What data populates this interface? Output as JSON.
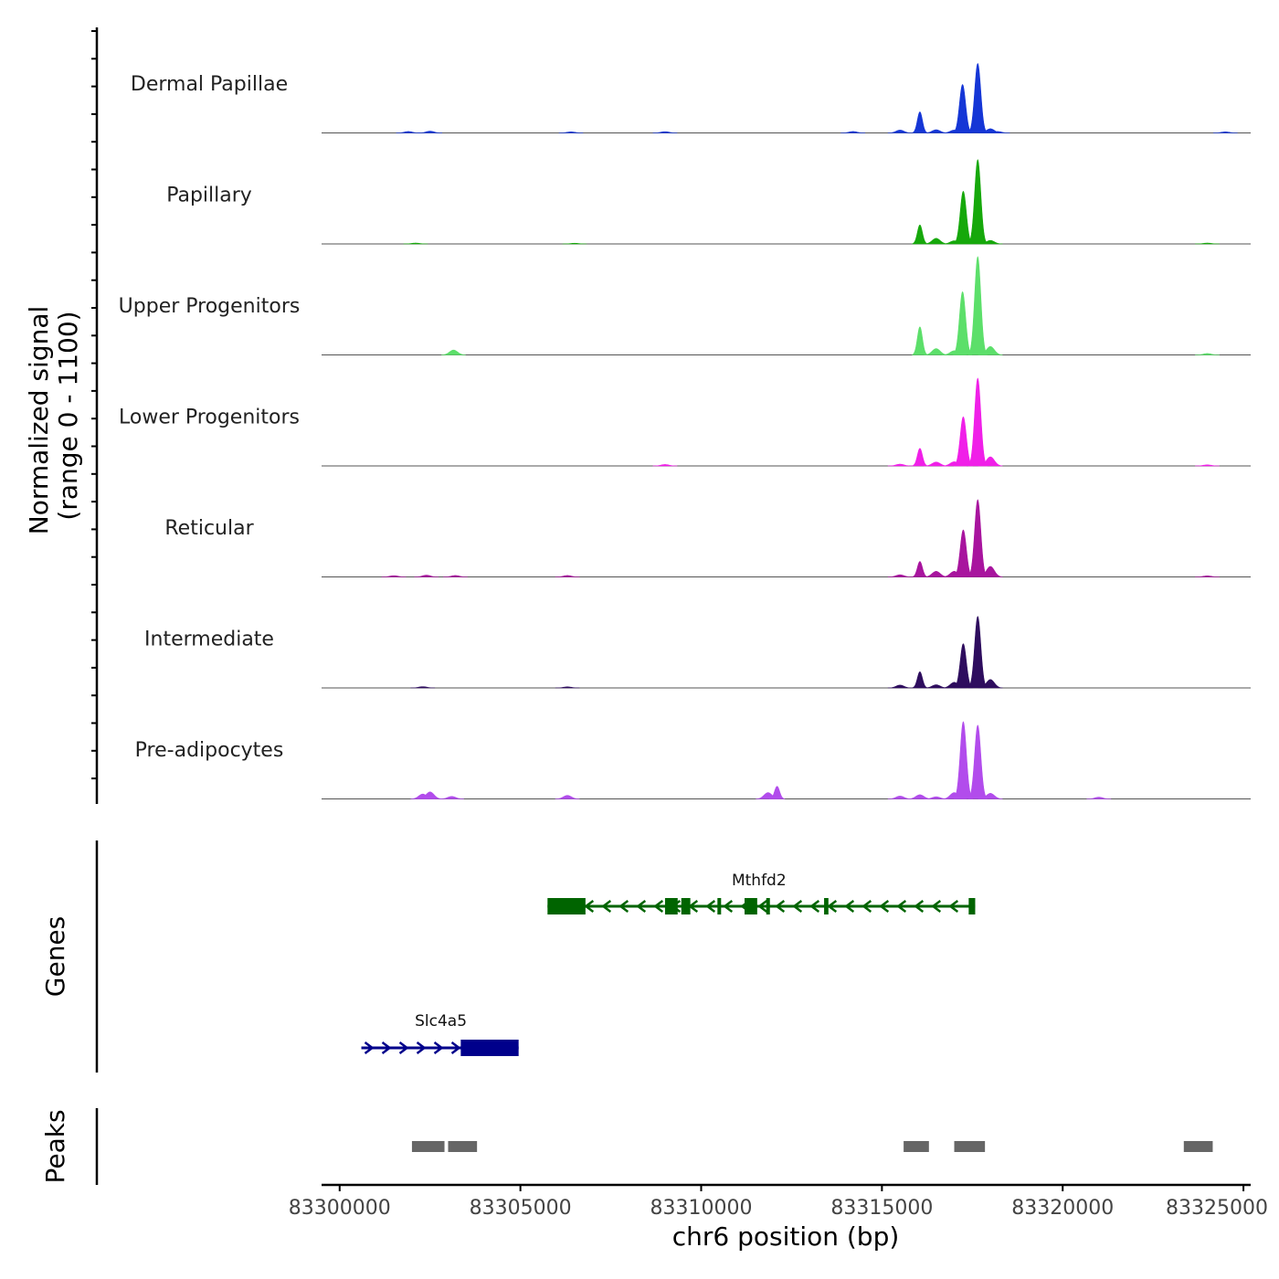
{
  "chart_data": {
    "type": "area",
    "title": "",
    "ylabel_line1": "Normalized signal",
    "ylabel_line2": "(range 0 - 1100)",
    "y_range": [
      0,
      1100
    ],
    "xlabel": "chr6 position (bp)",
    "xlim": [
      83299500,
      83325200
    ],
    "x_ticks": [
      {
        "value": 83300000,
        "label": "83300000"
      },
      {
        "value": 83305000,
        "label": "83305000"
      },
      {
        "value": 83310000,
        "label": "83310000"
      },
      {
        "value": 83315000,
        "label": "83315000"
      },
      {
        "value": 83320000,
        "label": "83320000"
      },
      {
        "value": 83325000,
        "label": "83325000"
      }
    ],
    "tracks": [
      {
        "name": "Dermal Papillae",
        "color": "#1536D6",
        "peaks": [
          [
            83301900,
            20
          ],
          [
            83302500,
            25
          ],
          [
            83306400,
            15
          ],
          [
            83309000,
            18
          ],
          [
            83314200,
            20
          ],
          [
            83315500,
            40
          ],
          [
            83316050,
            300
          ],
          [
            83316500,
            45
          ],
          [
            83317000,
            40
          ],
          [
            83317230,
            690
          ],
          [
            83317650,
            990
          ],
          [
            83318000,
            60
          ],
          [
            83318200,
            20
          ],
          [
            83324500,
            15
          ]
        ]
      },
      {
        "name": "Papillary",
        "color": "#16A80B",
        "peaks": [
          [
            83302100,
            12
          ],
          [
            83306500,
            10
          ],
          [
            83316050,
            270
          ],
          [
            83316500,
            80
          ],
          [
            83317000,
            45
          ],
          [
            83317250,
            750
          ],
          [
            83317650,
            1200
          ],
          [
            83318000,
            50
          ],
          [
            83324000,
            12
          ]
        ]
      },
      {
        "name": "Upper Progenitors",
        "color": "#5CDF6A",
        "peaks": [
          [
            83303150,
            70
          ],
          [
            83316050,
            400
          ],
          [
            83316500,
            90
          ],
          [
            83317000,
            60
          ],
          [
            83317230,
            900
          ],
          [
            83317650,
            1400
          ],
          [
            83318000,
            120
          ],
          [
            83324000,
            20
          ]
        ]
      },
      {
        "name": "Lower Progenitors",
        "color": "#F01FE8",
        "peaks": [
          [
            83309000,
            20
          ],
          [
            83315500,
            25
          ],
          [
            83316050,
            250
          ],
          [
            83316500,
            55
          ],
          [
            83317000,
            60
          ],
          [
            83317250,
            700
          ],
          [
            83317650,
            1250
          ],
          [
            83318000,
            130
          ],
          [
            83324000,
            15
          ]
        ]
      },
      {
        "name": "Reticular",
        "color": "#A8149E",
        "peaks": [
          [
            83301500,
            18
          ],
          [
            83302400,
            25
          ],
          [
            83303200,
            20
          ],
          [
            83306300,
            20
          ],
          [
            83315500,
            30
          ],
          [
            83316050,
            220
          ],
          [
            83316500,
            80
          ],
          [
            83317000,
            80
          ],
          [
            83317250,
            670
          ],
          [
            83317650,
            1100
          ],
          [
            83318000,
            150
          ],
          [
            83324000,
            15
          ]
        ]
      },
      {
        "name": "Intermediate",
        "color": "#2E0D5E",
        "peaks": [
          [
            83302300,
            18
          ],
          [
            83306300,
            15
          ],
          [
            83315500,
            40
          ],
          [
            83316050,
            230
          ],
          [
            83316500,
            45
          ],
          [
            83317000,
            80
          ],
          [
            83317250,
            630
          ],
          [
            83317650,
            1020
          ],
          [
            83318000,
            120
          ]
        ]
      },
      {
        "name": "Pre-adipocytes",
        "color": "#B24CEC",
        "peaks": [
          [
            83302300,
            70
          ],
          [
            83302500,
            100
          ],
          [
            83303100,
            35
          ],
          [
            83306300,
            50
          ],
          [
            83311850,
            90
          ],
          [
            83312100,
            180
          ],
          [
            83315500,
            40
          ],
          [
            83316050,
            60
          ],
          [
            83316500,
            30
          ],
          [
            83317000,
            90
          ],
          [
            83317250,
            1100
          ],
          [
            83317650,
            1050
          ],
          [
            83318000,
            80
          ],
          [
            83321000,
            25
          ]
        ]
      }
    ],
    "genes": {
      "label": "Genes",
      "items": [
        {
          "name": "Mthfd2",
          "strand": "-",
          "color": "#006400",
          "start": 83305750,
          "end": 83317580,
          "exons": [
            [
              83305750,
              83306800
            ],
            [
              83309000,
              83309350
            ],
            [
              83309450,
              83309700
            ],
            [
              83310450,
              83310550
            ],
            [
              83311200,
              83311550
            ],
            [
              83311800,
              83311900
            ],
            [
              83313400,
              83313520
            ],
            [
              83317400,
              83317580
            ]
          ]
        },
        {
          "name": "Slc4a5",
          "strand": "+",
          "color": "#00008B",
          "start": 83300600,
          "end": 83304950,
          "exons": [
            [
              83303350,
              83304950
            ]
          ]
        }
      ]
    },
    "peaks_track": {
      "label": "Peaks",
      "color": "#666666",
      "regions": [
        [
          83302000,
          83302900
        ],
        [
          83303000,
          83303800
        ],
        [
          83315600,
          83316300
        ],
        [
          83317000,
          83317850
        ],
        [
          83323350,
          83324150
        ]
      ]
    }
  }
}
